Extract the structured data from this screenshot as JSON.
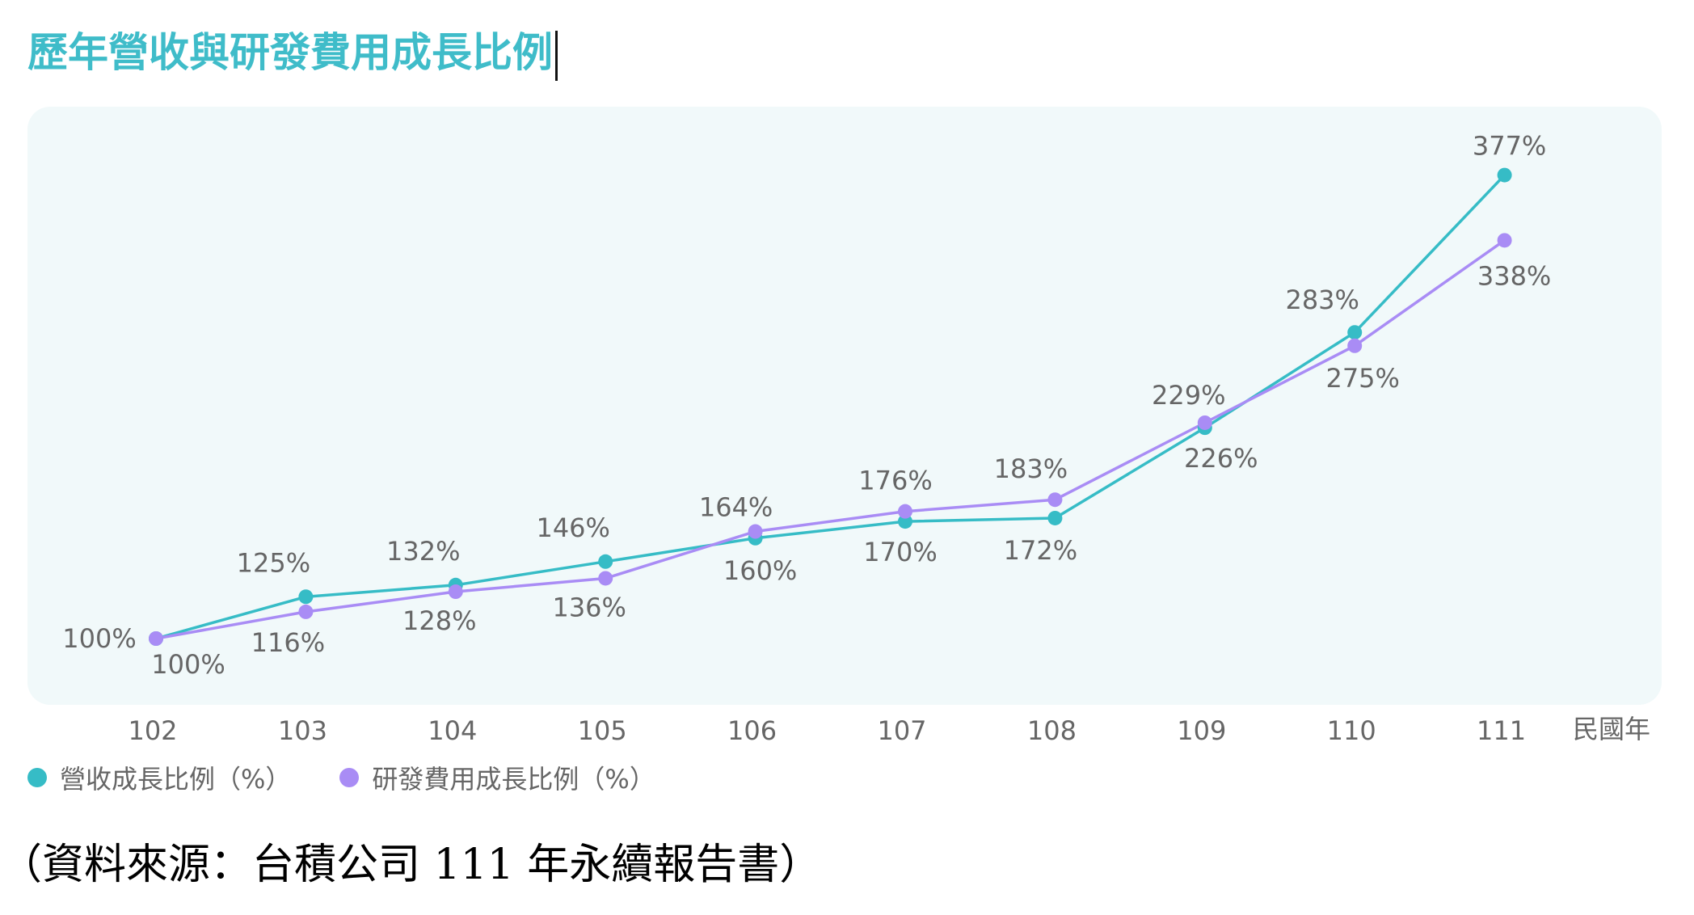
{
  "title": "歷年營收與研發費用成長比例",
  "source": "（資料來源：台積公司 111 年永續報告書）",
  "colors": {
    "revenue": "#36bcc6",
    "rnd": "#a98cf5",
    "plot_bg": "#f1f9fa",
    "title": "#3fbcc9",
    "label": "#666666"
  },
  "chart_data": {
    "type": "line",
    "title": "歷年營收與研發費用成長比例",
    "x": [
      "102",
      "103",
      "104",
      "105",
      "106",
      "107",
      "108",
      "109",
      "110",
      "111"
    ],
    "xlabel": "民國年",
    "ylabel": "",
    "ylim": [
      80,
      400
    ],
    "grid": false,
    "legend_position": "bottom-left",
    "series": [
      {
        "name": "營收成長比例（%）",
        "color": "#36bcc6",
        "values": [
          100,
          125,
          132,
          146,
          160,
          170,
          172,
          226,
          283,
          377
        ],
        "labels": [
          "100%",
          "125%",
          "132%",
          "146%",
          "160%",
          "170%",
          "172%",
          "226%",
          "283%",
          "377%"
        ]
      },
      {
        "name": "研發費用成長比例（%）",
        "color": "#a98cf5",
        "values": [
          100,
          116,
          128,
          136,
          164,
          176,
          183,
          229,
          275,
          338
        ],
        "labels": [
          "100%",
          "116%",
          "128%",
          "136%",
          "164%",
          "176%",
          "183%",
          "229%",
          "275%",
          "338%"
        ]
      }
    ]
  }
}
